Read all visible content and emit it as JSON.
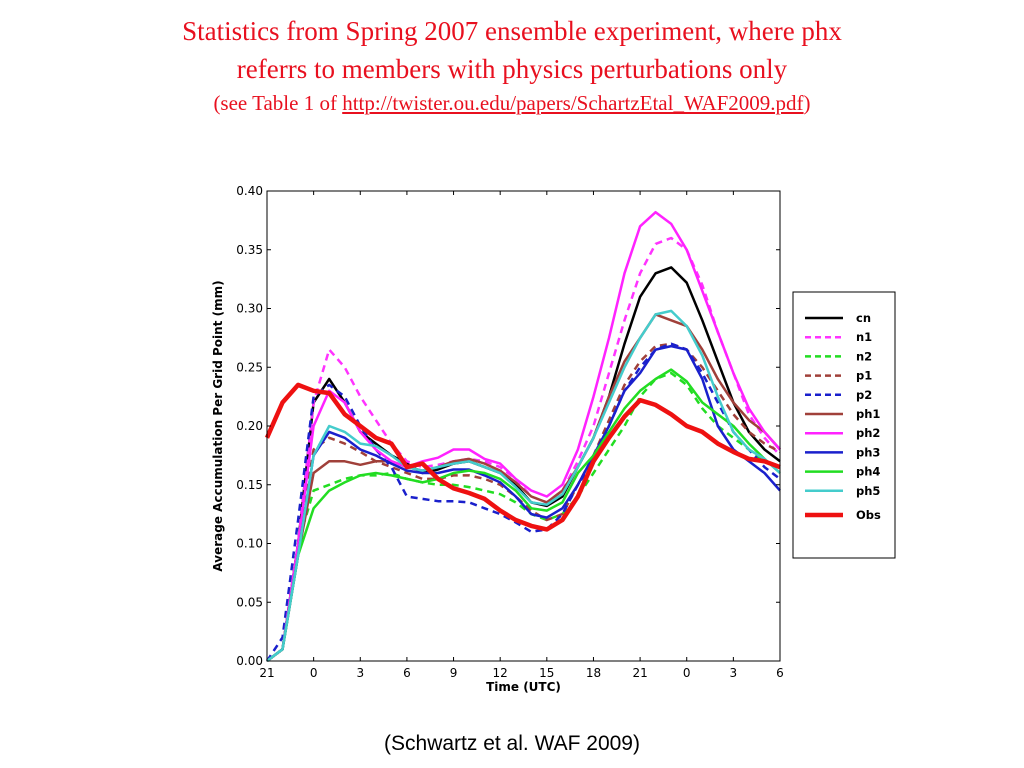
{
  "header": {
    "title_line1": "Statistics from Spring 2007 ensemble experiment, where phx",
    "title_line2": "referrs to members with physics perturbations only",
    "title_line3_prefix": "(see Table 1 of ",
    "title_line3_link": "http://twister.ou.edu/papers/SchartzEtal_WAF2009.pdf",
    "title_line3_suffix": ")"
  },
  "caption": "(Schwartz et al. WAF 2009)",
  "chart_data": {
    "type": "line",
    "xlabel": "Time (UTC)",
    "ylabel": "Average Accumulation Per Grid Point (mm)",
    "x": [
      21,
      22,
      23,
      24,
      25,
      26,
      27,
      28,
      29,
      30,
      31,
      32,
      33,
      34,
      35,
      36,
      37,
      38,
      39,
      40,
      41,
      42,
      43,
      44,
      45,
      46,
      47,
      48,
      49,
      50,
      51,
      52,
      53,
      54
    ],
    "x_ticks": [
      21,
      24,
      27,
      30,
      33,
      36,
      39,
      42,
      45,
      48,
      51,
      54
    ],
    "x_tick_labels": [
      "21",
      "0",
      "3",
      "6",
      "9",
      "12",
      "15",
      "18",
      "21",
      "0",
      "3",
      "6"
    ],
    "ylim": [
      0,
      0.4
    ],
    "y_ticks": [
      0.0,
      0.05,
      0.1,
      0.15,
      0.2,
      0.25,
      0.3,
      0.35,
      0.4
    ],
    "y_tick_labels": [
      "0.00",
      "0.05",
      "0.10",
      "0.15",
      "0.20",
      "0.25",
      "0.30",
      "0.35",
      "0.40"
    ],
    "grid": false,
    "legend_position": "right",
    "series": [
      {
        "name": "cn",
        "color": "#000000",
        "dash": "solid",
        "width": 2.5,
        "values": [
          0.0,
          0.01,
          0.1,
          0.22,
          0.24,
          0.22,
          0.195,
          0.185,
          0.175,
          0.168,
          0.16,
          0.163,
          0.168,
          0.17,
          0.165,
          0.16,
          0.15,
          0.135,
          0.132,
          0.14,
          0.165,
          0.19,
          0.225,
          0.27,
          0.31,
          0.33,
          0.335,
          0.322,
          0.29,
          0.255,
          0.22,
          0.195,
          0.18,
          0.17
        ]
      },
      {
        "name": "n1",
        "color": "#ff33ff",
        "dash": "dashed",
        "width": 2.5,
        "values": [
          0.0,
          0.01,
          0.1,
          0.22,
          0.265,
          0.25,
          0.225,
          0.205,
          0.185,
          0.17,
          0.165,
          0.167,
          0.17,
          0.172,
          0.17,
          0.165,
          0.155,
          0.14,
          0.135,
          0.145,
          0.17,
          0.2,
          0.245,
          0.29,
          0.33,
          0.355,
          0.36,
          0.35,
          0.32,
          0.28,
          0.245,
          0.21,
          0.19,
          0.175
        ]
      },
      {
        "name": "n2",
        "color": "#22dd22",
        "dash": "dashed",
        "width": 2.5,
        "values": [
          0.0,
          0.01,
          0.1,
          0.145,
          0.15,
          0.155,
          0.158,
          0.158,
          0.16,
          0.155,
          0.152,
          0.15,
          0.15,
          0.148,
          0.145,
          0.142,
          0.135,
          0.125,
          0.12,
          0.125,
          0.14,
          0.16,
          0.18,
          0.2,
          0.225,
          0.24,
          0.245,
          0.235,
          0.215,
          0.2,
          0.19,
          0.18,
          0.17,
          0.165
        ]
      },
      {
        "name": "p1",
        "color": "#a0403a",
        "dash": "dashed",
        "width": 2.5,
        "values": [
          0.0,
          0.01,
          0.1,
          0.18,
          0.19,
          0.185,
          0.178,
          0.17,
          0.165,
          0.16,
          0.155,
          0.155,
          0.158,
          0.158,
          0.155,
          0.15,
          0.14,
          0.128,
          0.12,
          0.125,
          0.15,
          0.175,
          0.205,
          0.235,
          0.255,
          0.268,
          0.27,
          0.265,
          0.25,
          0.23,
          0.21,
          0.195,
          0.185,
          0.178
        ]
      },
      {
        "name": "p2",
        "color": "#1a20cc",
        "dash": "dashed",
        "width": 2.5,
        "values": [
          0.0,
          0.02,
          0.12,
          0.225,
          0.235,
          0.225,
          0.2,
          0.18,
          0.165,
          0.14,
          0.138,
          0.136,
          0.136,
          0.135,
          0.13,
          0.125,
          0.118,
          0.11,
          0.112,
          0.125,
          0.15,
          0.17,
          0.2,
          0.23,
          0.25,
          0.265,
          0.27,
          0.265,
          0.245,
          0.22,
          0.195,
          0.18,
          0.165,
          0.155
        ]
      },
      {
        "name": "ph1",
        "color": "#a0403a",
        "dash": "solid",
        "width": 2.5,
        "values": [
          0.0,
          0.01,
          0.09,
          0.16,
          0.17,
          0.17,
          0.167,
          0.17,
          0.17,
          0.165,
          0.162,
          0.165,
          0.17,
          0.172,
          0.168,
          0.162,
          0.152,
          0.14,
          0.135,
          0.145,
          0.165,
          0.19,
          0.225,
          0.255,
          0.275,
          0.295,
          0.29,
          0.285,
          0.265,
          0.24,
          0.22,
          0.205,
          0.195,
          0.18
        ]
      },
      {
        "name": "ph2",
        "color": "#ff22ff",
        "dash": "solid",
        "width": 2.5,
        "values": [
          0.0,
          0.01,
          0.1,
          0.2,
          0.23,
          0.22,
          0.195,
          0.18,
          0.17,
          0.165,
          0.17,
          0.173,
          0.18,
          0.18,
          0.172,
          0.168,
          0.155,
          0.145,
          0.14,
          0.15,
          0.18,
          0.225,
          0.275,
          0.33,
          0.37,
          0.382,
          0.372,
          0.35,
          0.315,
          0.28,
          0.245,
          0.215,
          0.195,
          0.18
        ]
      },
      {
        "name": "ph3",
        "color": "#1a20cc",
        "dash": "solid",
        "width": 2.5,
        "values": [
          0.0,
          0.01,
          0.09,
          0.175,
          0.195,
          0.19,
          0.18,
          0.175,
          0.168,
          0.162,
          0.16,
          0.16,
          0.163,
          0.163,
          0.158,
          0.152,
          0.14,
          0.125,
          0.122,
          0.13,
          0.15,
          0.175,
          0.2,
          0.23,
          0.245,
          0.265,
          0.268,
          0.265,
          0.24,
          0.2,
          0.18,
          0.17,
          0.16,
          0.145
        ]
      },
      {
        "name": "ph4",
        "color": "#22dd22",
        "dash": "solid",
        "width": 2.5,
        "values": [
          0.0,
          0.01,
          0.09,
          0.13,
          0.145,
          0.152,
          0.158,
          0.16,
          0.158,
          0.155,
          0.152,
          0.155,
          0.16,
          0.162,
          0.16,
          0.155,
          0.145,
          0.13,
          0.128,
          0.135,
          0.16,
          0.175,
          0.195,
          0.215,
          0.23,
          0.24,
          0.248,
          0.238,
          0.22,
          0.21,
          0.2,
          0.185,
          0.172,
          0.16
        ]
      },
      {
        "name": "ph5",
        "color": "#44cccc",
        "dash": "solid",
        "width": 2.5,
        "values": [
          0.0,
          0.01,
          0.09,
          0.175,
          0.2,
          0.195,
          0.185,
          0.183,
          0.175,
          0.165,
          0.162,
          0.165,
          0.168,
          0.17,
          0.165,
          0.16,
          0.148,
          0.135,
          0.133,
          0.142,
          0.165,
          0.19,
          0.22,
          0.25,
          0.275,
          0.295,
          0.298,
          0.285,
          0.26,
          0.225,
          0.195,
          0.18,
          0.172,
          0.16
        ]
      },
      {
        "name": "Obs",
        "color": "#ee1111",
        "dash": "solid",
        "width": 4.5,
        "values": [
          0.19,
          0.22,
          0.235,
          0.23,
          0.228,
          0.21,
          0.2,
          0.19,
          0.185,
          0.165,
          0.168,
          0.155,
          0.147,
          0.143,
          0.138,
          0.128,
          0.12,
          0.115,
          0.112,
          0.12,
          0.14,
          0.17,
          0.19,
          0.208,
          0.222,
          0.218,
          0.21,
          0.2,
          0.195,
          0.185,
          0.178,
          0.172,
          0.17,
          0.165
        ]
      }
    ]
  }
}
